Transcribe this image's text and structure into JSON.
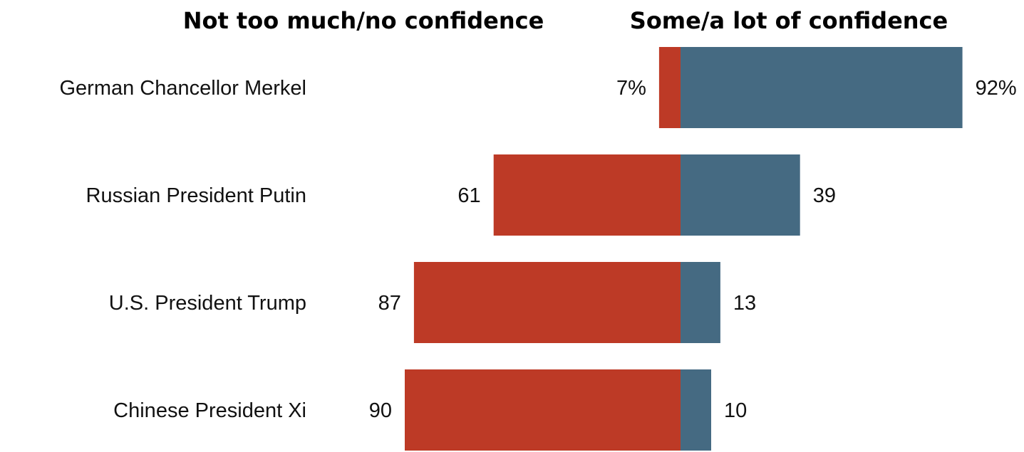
{
  "chart_data": {
    "type": "bar",
    "orientation": "horizontal-diverging",
    "headers": {
      "left": "Not too much/no confidence",
      "right": "Some/a lot of confidence"
    },
    "categories": [
      "German Chancellor Merkel",
      "Russian President Putin",
      "U.S. President Trump",
      "Chinese President Xi"
    ],
    "series": [
      {
        "name": "Not too much/no confidence",
        "values": [
          7,
          61,
          87,
          90
        ],
        "labels": [
          "7%",
          "61",
          "87",
          "90"
        ],
        "color": "#BD3A26"
      },
      {
        "name": "Some/a lot of confidence",
        "values": [
          92,
          39,
          13,
          10
        ],
        "labels": [
          "92%",
          "39",
          "13",
          "10"
        ],
        "color": "#456A82"
      }
    ],
    "xlim": [
      -100,
      100
    ]
  }
}
